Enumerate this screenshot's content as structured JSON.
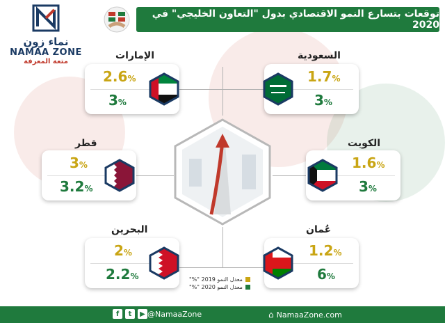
{
  "header": {
    "title": "توقعات بتسارع النمو الاقتصادي بدول \"التعاون الخليجي\" في 2020"
  },
  "logo": {
    "arabic": "نماء زون",
    "english": "NAMAA ZONE",
    "tagline": "متعة المعرفة"
  },
  "units": {
    "percent": "%"
  },
  "countries": [
    {
      "name": "الإمارات",
      "v2019": "2.6",
      "v2020": "3"
    },
    {
      "name": "السعودية",
      "v2019": "1.7",
      "v2020": "3"
    },
    {
      "name": "قطر",
      "v2019": "3",
      "v2020": "3.2"
    },
    {
      "name": "الكويت",
      "v2019": "1.6",
      "v2020": "3"
    },
    {
      "name": "البحرين",
      "v2019": "2",
      "v2020": "2.2"
    },
    {
      "name": "عُمان",
      "v2019": "1.2",
      "v2020": "6"
    }
  ],
  "legend": {
    "item2019": "معدل النمو 2019 \"%\"",
    "item2020": "معدل النمو 2020 \"%\"",
    "color2019": "#c9a514",
    "color2020": "#1f7a3d"
  },
  "footer": {
    "social_handle": "@NamaaZone",
    "website": "NamaaZone.com"
  },
  "colors": {
    "green": "#1f7a3d",
    "gold": "#c9a514",
    "red": "#c0392b",
    "navy": "#1a3a63"
  }
}
